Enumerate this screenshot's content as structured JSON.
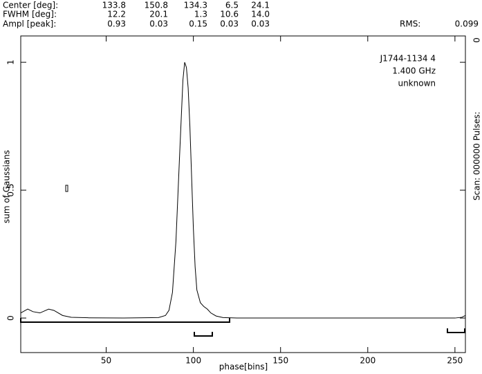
{
  "header": {
    "rows": [
      {
        "label": "Center [deg]:",
        "values": [
          "133.8",
          "150.8",
          "134.3",
          "6.5",
          "24.1"
        ]
      },
      {
        "label": "FWHM  [deg]:",
        "values": [
          "12.2",
          "20.1",
          "1.3",
          "10.6",
          "14.0"
        ]
      },
      {
        "label": "Ampl  [peak]:",
        "values": [
          "0.93",
          "0.03",
          "0.15",
          "0.03",
          "0.03"
        ]
      }
    ],
    "rms_label": "RMS:",
    "rms": "0.099"
  },
  "side": {
    "scan": "Scan: 000000   Pulses:",
    "pulses": "0"
  },
  "chart_data": {
    "type": "line",
    "annotations": [
      "J1744-1134 4",
      "1.400 GHz",
      "unknown"
    ],
    "xlabel": "phase[bins]",
    "ylabel": "sum of Gaussians",
    "xlim": [
      1,
      256
    ],
    "ylim": [
      -0.135,
      1.103
    ],
    "xticks": [
      50,
      100,
      150,
      200,
      250
    ],
    "yticks": [
      0,
      0.5,
      1
    ],
    "series": [
      {
        "color": "#000000",
        "x": [
          1,
          5,
          8,
          12,
          17,
          20,
          25,
          30,
          40,
          60,
          80,
          84,
          86,
          88,
          90,
          92,
          94,
          95,
          96,
          97,
          98,
          99,
          100,
          101,
          102,
          104,
          106,
          108,
          110,
          113,
          117,
          125,
          200,
          250,
          254,
          256
        ],
        "values": [
          0.02,
          0.035,
          0.025,
          0.02,
          0.035,
          0.03,
          0.01,
          0.003,
          0.001,
          0,
          0.002,
          0.01,
          0.03,
          0.1,
          0.3,
          0.62,
          0.93,
          1.0,
          0.98,
          0.9,
          0.75,
          0.55,
          0.35,
          0.2,
          0.11,
          0.06,
          0.045,
          0.035,
          0.02,
          0.008,
          0.002,
          0,
          0,
          0,
          0.003,
          0.01
        ]
      }
    ]
  }
}
